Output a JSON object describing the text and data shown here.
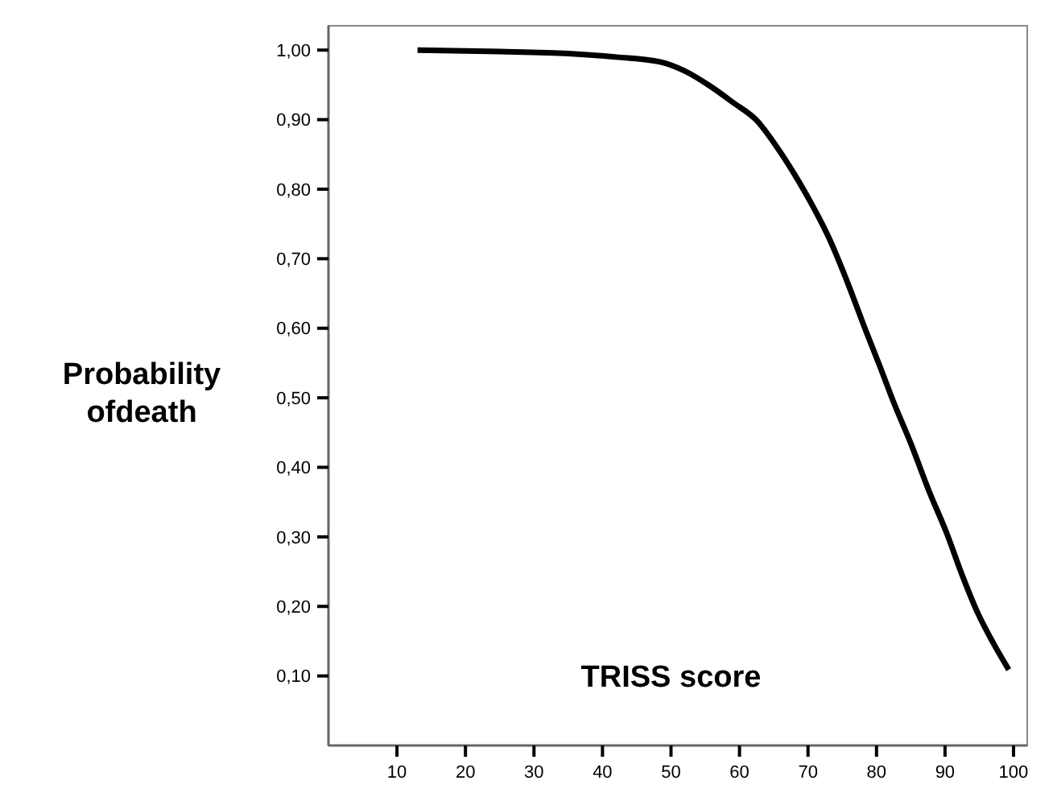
{
  "chart_data": {
    "type": "line",
    "xlabel": "TRISS score",
    "ylabel": "Probability ofdeath",
    "xlim": [
      0,
      102
    ],
    "ylim": [
      0,
      1.035
    ],
    "xticks": [
      10,
      20,
      30,
      40,
      50,
      60,
      70,
      80,
      90,
      100
    ],
    "yticks": [
      {
        "value": 0.1,
        "label": "0,10"
      },
      {
        "value": 0.2,
        "label": "0,20"
      },
      {
        "value": 0.3,
        "label": "0,30"
      },
      {
        "value": 0.4,
        "label": "0,40"
      },
      {
        "value": 0.5,
        "label": "0,50"
      },
      {
        "value": 0.6,
        "label": "0,60"
      },
      {
        "value": 0.7,
        "label": "0,70"
      },
      {
        "value": 0.8,
        "label": "0,80"
      },
      {
        "value": 0.9,
        "label": "0,90"
      },
      {
        "value": 1.0,
        "label": "1,00"
      }
    ],
    "grid": false,
    "marker": "none",
    "line_style": "solid",
    "series": [
      {
        "color": "#000000",
        "x": [
          13,
          25,
          35,
          42,
          48.4,
          52,
          55.9,
          59,
          62.6,
          65.5,
          68.6,
          71,
          73.1,
          75.8,
          78.3,
          80.5,
          82.4,
          85.1,
          87.7,
          90.3,
          92.5,
          94.8,
          97,
          99.3
        ],
        "values": [
          1.0,
          0.998,
          0.995,
          0.99,
          0.983,
          0.97,
          0.947,
          0.925,
          0.898,
          0.86,
          0.812,
          0.77,
          0.729,
          0.665,
          0.6,
          0.545,
          0.496,
          0.432,
          0.365,
          0.304,
          0.245,
          0.19,
          0.148,
          0.109
        ]
      }
    ]
  }
}
